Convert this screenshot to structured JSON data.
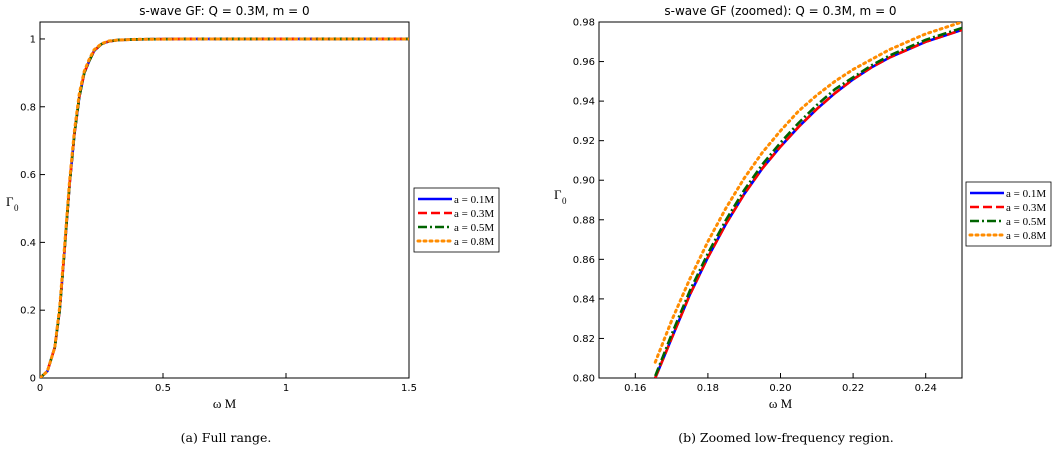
{
  "chart_data": [
    {
      "type": "line",
      "title": "s-wave GF: Q = 0.3M, m = 0",
      "xlabel": "ω M",
      "ylabel": "Γ",
      "ylabel_sub": "0",
      "xlim": [
        0,
        1.5
      ],
      "ylim": [
        0,
        1.05
      ],
      "xticks": [
        "0",
        "0.5",
        "1",
        "1.5"
      ],
      "xtick_values": [
        0,
        0.5,
        1,
        1.5
      ],
      "yticks": [
        "0",
        "0.2",
        "0.4",
        "0.6",
        "0.8",
        "1"
      ],
      "ytick_values": [
        0,
        0.2,
        0.4,
        0.6,
        0.8,
        1
      ],
      "legend_position": "right",
      "caption": "(a) Full range.",
      "series": [
        {
          "name": "a = 0.1M",
          "color": "#0000ff",
          "style": "solid",
          "x": [
            0,
            0.03,
            0.06,
            0.08,
            0.1,
            0.12,
            0.14,
            0.16,
            0.18,
            0.2,
            0.22,
            0.25,
            0.28,
            0.32,
            0.4,
            0.6,
            1.0,
            1.5
          ],
          "y": [
            0,
            0.02,
            0.09,
            0.2,
            0.38,
            0.57,
            0.72,
            0.83,
            0.9,
            0.935,
            0.965,
            0.985,
            0.993,
            0.997,
            0.999,
            1,
            1,
            1
          ]
        },
        {
          "name": "a = 0.3M",
          "color": "#ff0000",
          "style": "dash",
          "x": [
            0,
            0.03,
            0.06,
            0.08,
            0.1,
            0.12,
            0.14,
            0.16,
            0.18,
            0.2,
            0.22,
            0.25,
            0.28,
            0.32,
            0.4,
            0.6,
            1.0,
            1.5
          ],
          "y": [
            0,
            0.02,
            0.09,
            0.2,
            0.38,
            0.57,
            0.72,
            0.83,
            0.9,
            0.935,
            0.965,
            0.985,
            0.993,
            0.997,
            0.999,
            1,
            1,
            1
          ]
        },
        {
          "name": "a = 0.5M",
          "color": "#006400",
          "style": "dashdot",
          "x": [
            0,
            0.03,
            0.06,
            0.08,
            0.1,
            0.12,
            0.14,
            0.16,
            0.18,
            0.2,
            0.22,
            0.25,
            0.28,
            0.32,
            0.4,
            0.6,
            1.0,
            1.5
          ],
          "y": [
            0,
            0.02,
            0.09,
            0.2,
            0.38,
            0.57,
            0.72,
            0.83,
            0.9,
            0.935,
            0.965,
            0.985,
            0.993,
            0.997,
            0.999,
            1,
            1,
            1
          ]
        },
        {
          "name": "a = 0.8M",
          "color": "#ff8c00",
          "style": "dot",
          "x": [
            0,
            0.03,
            0.06,
            0.08,
            0.1,
            0.12,
            0.14,
            0.16,
            0.18,
            0.2,
            0.22,
            0.25,
            0.28,
            0.32,
            0.4,
            0.6,
            1.0,
            1.5
          ],
          "y": [
            0,
            0.02,
            0.09,
            0.21,
            0.39,
            0.58,
            0.73,
            0.84,
            0.905,
            0.94,
            0.968,
            0.986,
            0.994,
            0.997,
            0.999,
            1,
            1,
            1
          ]
        }
      ]
    },
    {
      "type": "line",
      "title": "s-wave GF (zoomed): Q = 0.3M, m = 0",
      "xlabel": "ω M",
      "ylabel": "Γ",
      "ylabel_sub": "0",
      "xlim": [
        0.15,
        0.25
      ],
      "ylim": [
        0.8,
        0.98
      ],
      "xticks": [
        "0.16",
        "0.18",
        "0.20",
        "0.22",
        "0.24"
      ],
      "xtick_values": [
        0.16,
        0.18,
        0.2,
        0.22,
        0.24
      ],
      "yticks": [
        "0.80",
        "0.82",
        "0.84",
        "0.86",
        "0.88",
        "0.90",
        "0.92",
        "0.94",
        "0.96",
        "0.98"
      ],
      "ytick_values": [
        0.8,
        0.82,
        0.84,
        0.86,
        0.88,
        0.9,
        0.92,
        0.94,
        0.96,
        0.98
      ],
      "legend_position": "right",
      "caption": "(b) Zoomed low-frequency region.",
      "series": [
        {
          "name": "a = 0.1M",
          "color": "#0000ff",
          "style": "solid",
          "x": [
            0.1655,
            0.17,
            0.175,
            0.18,
            0.185,
            0.19,
            0.195,
            0.2,
            0.205,
            0.21,
            0.215,
            0.22,
            0.225,
            0.23,
            0.235,
            0.24,
            0.245,
            0.25
          ],
          "y": [
            0.8,
            0.82,
            0.842,
            0.861,
            0.878,
            0.893,
            0.906,
            0.917,
            0.927,
            0.936,
            0.944,
            0.951,
            0.957,
            0.962,
            0.966,
            0.97,
            0.973,
            0.976
          ]
        },
        {
          "name": "a = 0.3M",
          "color": "#ff0000",
          "style": "dash",
          "x": [
            0.1655,
            0.17,
            0.175,
            0.18,
            0.185,
            0.19,
            0.195,
            0.2,
            0.205,
            0.21,
            0.215,
            0.22,
            0.225,
            0.23,
            0.235,
            0.24,
            0.245,
            0.25
          ],
          "y": [
            0.8,
            0.82,
            0.842,
            0.861,
            0.878,
            0.893,
            0.906,
            0.917,
            0.927,
            0.936,
            0.944,
            0.951,
            0.957,
            0.962,
            0.966,
            0.97,
            0.973,
            0.976
          ]
        },
        {
          "name": "a = 0.5M",
          "color": "#006400",
          "style": "dashdot",
          "x": [
            0.1655,
            0.17,
            0.175,
            0.18,
            0.185,
            0.19,
            0.195,
            0.2,
            0.205,
            0.21,
            0.215,
            0.22,
            0.225,
            0.23,
            0.235,
            0.24,
            0.245,
            0.25
          ],
          "y": [
            0.801,
            0.822,
            0.844,
            0.863,
            0.88,
            0.895,
            0.908,
            0.919,
            0.929,
            0.938,
            0.946,
            0.952,
            0.958,
            0.963,
            0.967,
            0.971,
            0.974,
            0.977
          ]
        },
        {
          "name": "a = 0.8M",
          "color": "#ff8c00",
          "style": "dot",
          "x": [
            0.1655,
            0.17,
            0.175,
            0.18,
            0.185,
            0.19,
            0.195,
            0.2,
            0.205,
            0.21,
            0.215,
            0.22,
            0.225,
            0.23,
            0.235,
            0.24,
            0.245,
            0.25
          ],
          "y": [
            0.808,
            0.829,
            0.85,
            0.869,
            0.886,
            0.901,
            0.914,
            0.925,
            0.935,
            0.943,
            0.95,
            0.956,
            0.961,
            0.966,
            0.97,
            0.974,
            0.977,
            0.98
          ]
        }
      ]
    }
  ]
}
